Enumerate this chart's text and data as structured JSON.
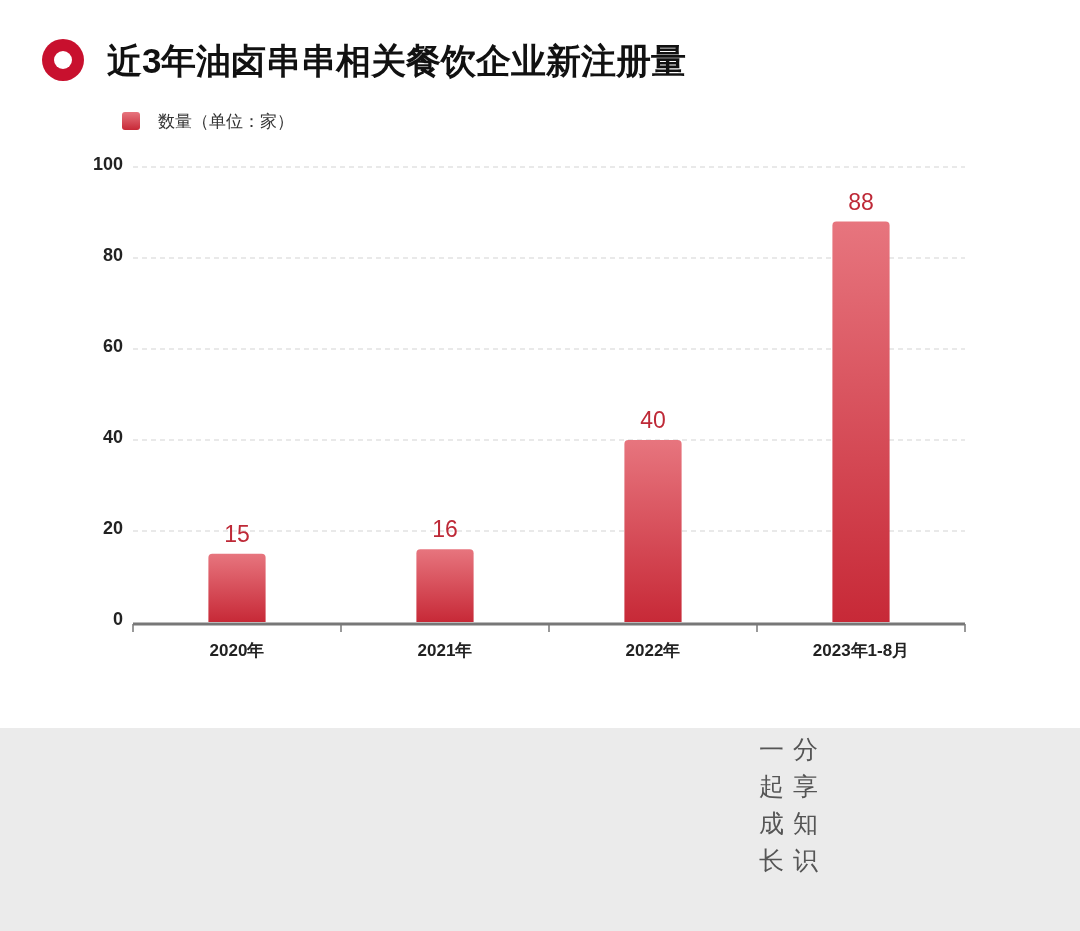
{
  "chart_data": {
    "type": "bar",
    "title": "近3年油卤串串相关餐饮企业新注册量",
    "categories": [
      "2020年",
      "2021年",
      "2022年",
      "2023年1-8月"
    ],
    "series": [
      {
        "name": "数量（单位：家）",
        "color": "#dc3a46",
        "values": [
          15,
          16,
          40,
          88
        ]
      }
    ],
    "ylim": [
      0,
      100
    ],
    "yticks": [
      0,
      20,
      40,
      60,
      80,
      100
    ],
    "grid": "y",
    "legend": "top left",
    "data_labels": true,
    "annotations": [
      "一起成长",
      "分享知识"
    ]
  }
}
